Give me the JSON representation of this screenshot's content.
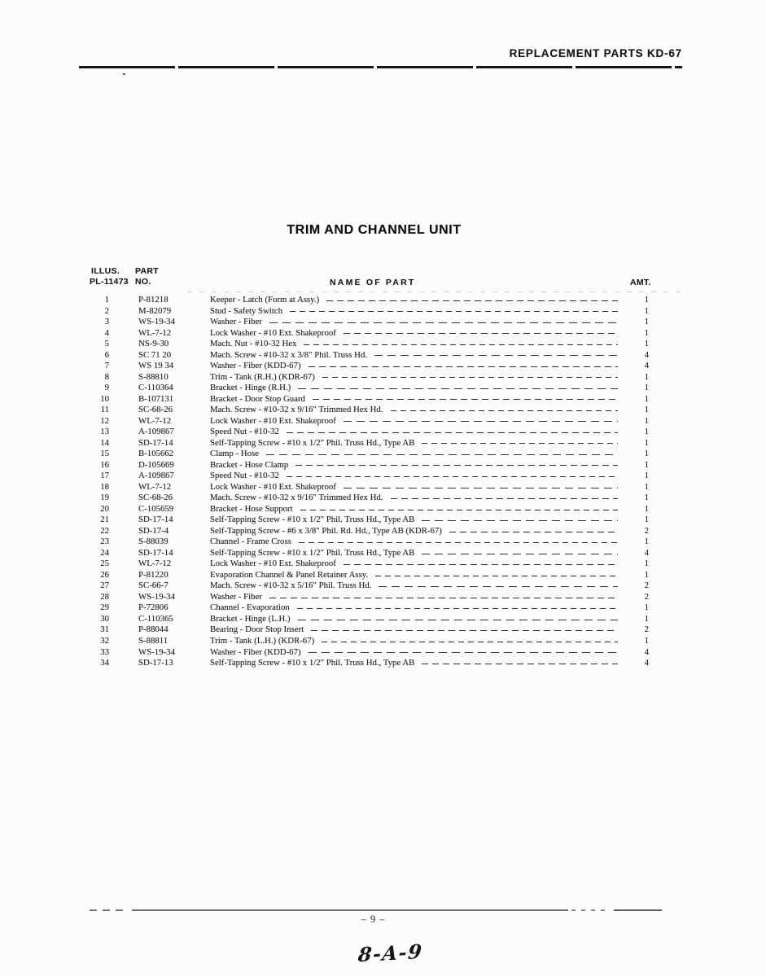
{
  "header": {
    "title": "REPLACEMENT PARTS KD-67"
  },
  "section": {
    "title": "TRIM AND CHANNEL UNIT"
  },
  "table": {
    "headers": {
      "illus_line1": "ILLUS.",
      "illus_line2": "PL-11473",
      "part_line1": "PART",
      "part_line2": "NO.",
      "name": "NAME OF PART",
      "amt": "AMT."
    },
    "rows": [
      {
        "illus": "1",
        "part": "P-81218",
        "name": "Keeper - Latch (Form at Assy.)",
        "amt": "1"
      },
      {
        "illus": "2",
        "part": "M-82079",
        "name": "Stud - Safety Switch",
        "amt": "1"
      },
      {
        "illus": "3",
        "part": "WS-19-34",
        "name": "Washer - Fiber",
        "amt": "1"
      },
      {
        "illus": "4",
        "part": "WL-7-12",
        "name": "Lock Washer - #10 Ext. Shakeproof",
        "amt": "1"
      },
      {
        "illus": "5",
        "part": "NS-9-30",
        "name": "Mach. Nut - #10-32 Hex",
        "amt": "1"
      },
      {
        "illus": "6",
        "part": "SC 71 20",
        "name": "Mach. Screw - #10-32 x 3/8\" Phil. Truss Hd.",
        "amt": "4"
      },
      {
        "illus": "7",
        "part": "WS 19 34",
        "name": "Washer - Fiber (KDD-67)",
        "amt": "4"
      },
      {
        "illus": "8",
        "part": "S-88810",
        "name": "Trim - Tank (R.H.) (KDR-67)",
        "amt": "1"
      },
      {
        "illus": "9",
        "part": "C-110364",
        "name": "Bracket - Hinge (R.H.)",
        "amt": "1"
      },
      {
        "illus": "10",
        "part": "B-107131",
        "name": "Bracket - Door Stop Guard",
        "amt": "1"
      },
      {
        "illus": "11",
        "part": "SC-68-26",
        "name": "Mach. Screw - #10-32 x 9/16\" Trimmed Hex Hd.",
        "amt": "1"
      },
      {
        "illus": "12",
        "part": "WL-7-12",
        "name": "Lock Washer - #10 Ext. Shakeproof",
        "amt": "1"
      },
      {
        "illus": "13",
        "part": "A-109867",
        "name": "Speed Nut - #10-32",
        "amt": "1"
      },
      {
        "illus": "14",
        "part": "SD-17-14",
        "name": "Self-Tapping Screw - #10 x 1/2\" Phil. Truss Hd., Type AB",
        "amt": "1"
      },
      {
        "illus": "15",
        "part": "B-105662",
        "name": "Clamp - Hose",
        "amt": "1"
      },
      {
        "illus": "16",
        "part": "D-105669",
        "name": "Bracket - Hose Clamp",
        "amt": "1"
      },
      {
        "illus": "17",
        "part": "A-109867",
        "name": "Speed Nut - #10-32",
        "amt": "1"
      },
      {
        "illus": "18",
        "part": "WL-7-12",
        "name": "Lock Washer - #10 Ext. Shakeproof",
        "amt": "1"
      },
      {
        "illus": "19",
        "part": "SC-68-26",
        "name": "Mach. Screw - #10-32 x 9/16\" Trimmed Hex Hd.",
        "amt": "1"
      },
      {
        "illus": "20",
        "part": "C-105659",
        "name": "Bracket - Hose Support",
        "amt": "1"
      },
      {
        "illus": "21",
        "part": "SD-17-14",
        "name": "Self-Tapping Screw - #10 x 1/2\" Phil. Truss Hd., Type AB",
        "amt": "1"
      },
      {
        "illus": "22",
        "part": "SD-17-4",
        "name": "Self-Tapping Screw - #6 x 3/8\" Phil. Rd. Hd., Type AB (KDR-67)",
        "amt": "2"
      },
      {
        "illus": "23",
        "part": "S-88039",
        "name": "Channel - Frame Cross",
        "amt": "1"
      },
      {
        "illus": "24",
        "part": "SD-17-14",
        "name": "Self-Tapping Screw - #10 x 1/2\" Phil. Truss Hd., Type AB",
        "amt": "4"
      },
      {
        "illus": "25",
        "part": "WL-7-12",
        "name": "Lock Washer - #10 Ext. Shakeproof",
        "amt": "1"
      },
      {
        "illus": "26",
        "part": "P-81220",
        "name": "Evaporation Channel & Panel Retainer Assy.",
        "amt": "1"
      },
      {
        "illus": "27",
        "part": "SC-66-7",
        "name": "Mach. Screw - #10-32 x 5/16\" Phil. Truss Hd.",
        "amt": "2"
      },
      {
        "illus": "28",
        "part": "WS-19-34",
        "name": "Washer - Fiber",
        "amt": "2"
      },
      {
        "illus": "29",
        "part": "P-72806",
        "name": "Channel - Evaporation",
        "amt": "1"
      },
      {
        "illus": "30",
        "part": "C-110365",
        "name": "Bracket - Hinge (L.H.)",
        "amt": "1"
      },
      {
        "illus": "31",
        "part": "P-88044",
        "name": "Bearing - Door Stop Insert",
        "amt": "2"
      },
      {
        "illus": "32",
        "part": "S-88811",
        "name": "Trim - Tank (L.H.) (KDR-67)",
        "amt": "1"
      },
      {
        "illus": "33",
        "part": "WS-19-34",
        "name": "Washer - Fiber (KDD-67)",
        "amt": "4"
      },
      {
        "illus": "34",
        "part": "SD-17-13",
        "name": "Self-Tapping Screw - #10 x 1/2\" Phil. Truss Hd., Type AB",
        "amt": "4"
      }
    ]
  },
  "footer": {
    "page_number": "– 9 –",
    "handwritten_label": "8-A-9"
  }
}
